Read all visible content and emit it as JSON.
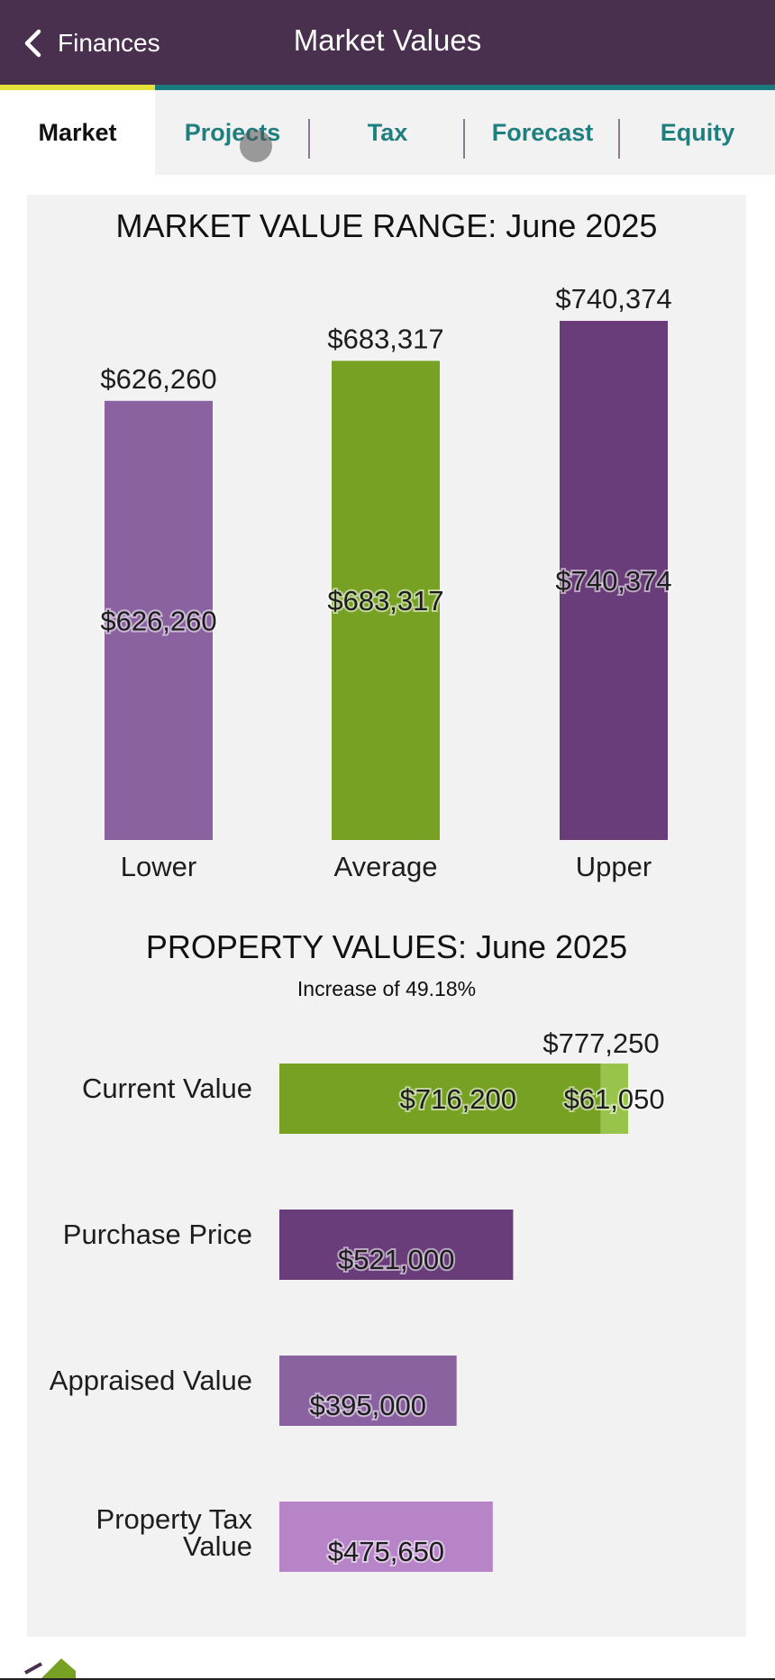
{
  "header": {
    "back_label": "Finances",
    "title": "Market Values"
  },
  "tabs": [
    {
      "label": "Market",
      "active": true
    },
    {
      "label": "Projects",
      "active": false
    },
    {
      "label": "Tax",
      "active": false
    },
    {
      "label": "Forecast",
      "active": false
    },
    {
      "label": "Equity",
      "active": false
    }
  ],
  "colors": {
    "header_bg": "#49304f",
    "tab_active_indicator": "#e6e03a",
    "tab_text": "#1f7f7f",
    "lower": "#8b62a0",
    "average": "#77a123",
    "upper": "#693c7a",
    "current_value": "#77a123",
    "current_gain": "#98c44c",
    "purchase": "#693c7a",
    "appraised": "#8b62a0",
    "tax_value": "#b784c7"
  },
  "chart_data": [
    {
      "type": "bar",
      "title": "MARKET VALUE RANGE: June 2025",
      "categories": [
        "Lower",
        "Average",
        "Upper"
      ],
      "values": [
        626260,
        683317,
        740374
      ],
      "value_labels": [
        "$626,260",
        "$683,317",
        "$740,374"
      ],
      "ylim": [
        0,
        740374
      ],
      "grid": false
    },
    {
      "type": "bar",
      "orientation": "horizontal",
      "title": "PROPERTY VALUES: June 2025",
      "subtitle": "Increase of 49.18%",
      "categories": [
        "Current Value",
        "Purchase Price",
        "Appraised Value",
        "Property Tax Value"
      ],
      "series": [
        {
          "values": [
            716200,
            521000,
            395000,
            475650
          ],
          "value_labels": [
            "$716,200",
            "$521,000",
            "$395,000",
            "$475,650"
          ]
        },
        {
          "values": [
            61050,
            0,
            0,
            0
          ],
          "value_labels": [
            "$61,050",
            "",
            "",
            ""
          ]
        }
      ],
      "totals": [
        {
          "category": "Current Value",
          "value": 777250,
          "label": "$777,250"
        }
      ],
      "xlim": [
        0,
        777250
      ],
      "grid": false
    }
  ]
}
